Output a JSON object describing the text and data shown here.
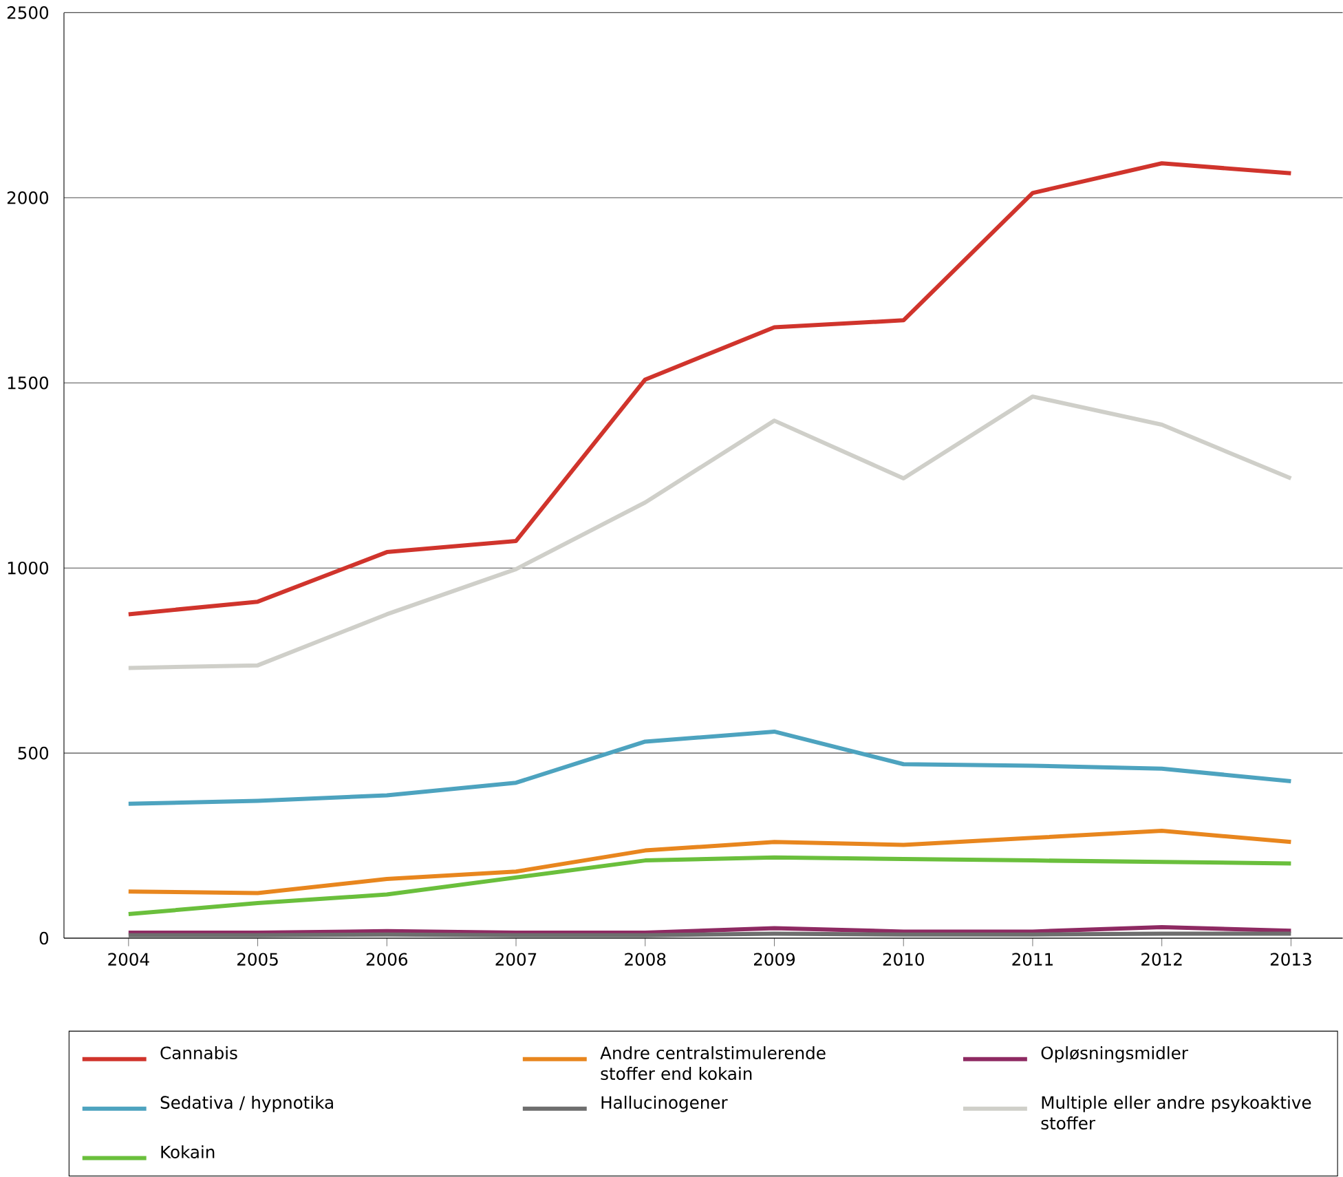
{
  "chart_data": {
    "type": "line",
    "x": [
      2004,
      2005,
      2006,
      2007,
      2008,
      2009,
      2010,
      2011,
      2012,
      2013
    ],
    "xlim": [
      2003.5,
      2013.4
    ],
    "ylim": [
      0,
      2500
    ],
    "xticks": [
      2004,
      2005,
      2006,
      2007,
      2008,
      2009,
      2010,
      2011,
      2012,
      2013
    ],
    "yticks": [
      0,
      500,
      1000,
      1500,
      2000,
      2500
    ],
    "grid": "y",
    "legend": "bottom",
    "marker": "none",
    "line_style": "solid",
    "series": [
      {
        "name": "Cannabis",
        "color": "#d0342c",
        "values": [
          875,
          909,
          1043,
          1073,
          1509,
          1650,
          1669,
          2013,
          2093,
          2066
        ]
      },
      {
        "name": "Andre centralstimulerende stoffer end kokain",
        "color": "#e8861e",
        "values": [
          126,
          122,
          160,
          180,
          237,
          260,
          252,
          271,
          290,
          260
        ]
      },
      {
        "name": "Opløsningsmidler",
        "color": "#8e2a62",
        "values": [
          15,
          15,
          19,
          15,
          15,
          27,
          18,
          18,
          30,
          20
        ]
      },
      {
        "name": "Sedativa / hypnotika",
        "color": "#4da3bf",
        "values": [
          363,
          371,
          386,
          420,
          531,
          558,
          470,
          466,
          458,
          424
        ]
      },
      {
        "name": "Hallucinogener",
        "color": "#6e6e6e",
        "values": [
          8,
          8,
          10,
          8,
          8,
          12,
          10,
          10,
          12,
          12
        ]
      },
      {
        "name": "Multiple eller andre psykoaktive stoffer",
        "color": "#cfcfc9",
        "values": [
          730,
          737,
          875,
          997,
          1177,
          1398,
          1242,
          1463,
          1387,
          1242
        ]
      },
      {
        "name": "Kokain",
        "color": "#6abf3c",
        "values": [
          65,
          95,
          118,
          164,
          210,
          218,
          214,
          210,
          206,
          202
        ]
      }
    ]
  }
}
